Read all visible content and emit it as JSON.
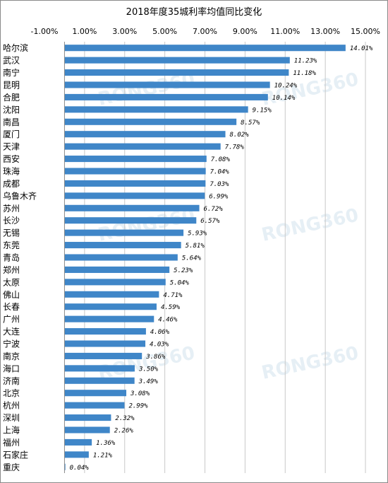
{
  "chart_data": {
    "type": "bar",
    "orientation": "horizontal",
    "title": "2018年度35城利率均值同比变化",
    "xlabel": "",
    "ylabel": "",
    "xlim": [
      -1,
      15
    ],
    "ticks": [
      -1,
      1,
      3,
      5,
      7,
      9,
      11,
      13,
      15
    ],
    "tick_labels": [
      "-1.00%",
      "1.00%",
      "3.00%",
      "5.00%",
      "7.00%",
      "9.00%",
      "11.00%",
      "13.00%",
      "15.00%"
    ],
    "grid": true,
    "legend": "none",
    "bar_color": "#3f86c8",
    "grid_color": "#c8c8c8",
    "watermark": "RONG360",
    "categories": [
      "哈尔滨",
      "武汉",
      "南宁",
      "昆明",
      "合肥",
      "沈阳",
      "南昌",
      "厦门",
      "天津",
      "西安",
      "珠海",
      "成都",
      "乌鲁木齐",
      "苏州",
      "长沙",
      "无锡",
      "东莞",
      "青岛",
      "郑州",
      "太原",
      "佛山",
      "长春",
      "广州",
      "大连",
      "宁波",
      "南京",
      "海口",
      "济南",
      "北京",
      "杭州",
      "深圳",
      "上海",
      "福州",
      "石家庄",
      "重庆"
    ],
    "values": [
      14.01,
      11.23,
      11.18,
      10.24,
      10.14,
      9.15,
      8.57,
      8.02,
      7.78,
      7.08,
      7.04,
      7.03,
      6.99,
      6.72,
      6.57,
      5.93,
      5.81,
      5.64,
      5.23,
      5.04,
      4.71,
      4.59,
      4.46,
      4.06,
      4.03,
      3.86,
      3.5,
      3.49,
      3.08,
      2.99,
      2.32,
      2.26,
      1.36,
      1.21,
      0.04
    ],
    "value_labels": [
      "14.01%",
      "11.23%",
      "11.18%",
      "10.24%",
      "10.14%",
      "9.15%",
      "8.57%",
      "8.02%",
      "7.78%",
      "7.08%",
      "7.04%",
      "7.03%",
      "6.99%",
      "6.72%",
      "6.57%",
      "5.93%",
      "5.81%",
      "5.64%",
      "5.23%",
      "5.04%",
      "4.71%",
      "4.59%",
      "4.46%",
      "4.06%",
      "4.03%",
      "3.86%",
      "3.50%",
      "3.49%",
      "3.08%",
      "2.99%",
      "2.32%",
      "2.26%",
      "1.36%",
      "1.21%",
      "0.04%"
    ]
  }
}
